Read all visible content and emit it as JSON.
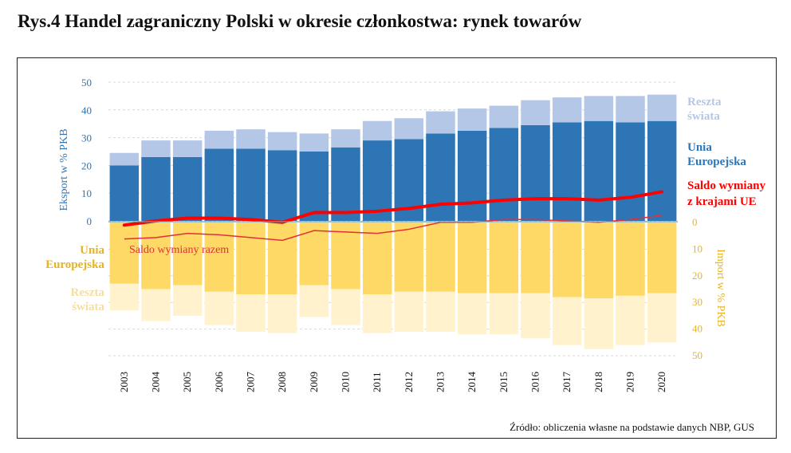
{
  "title": "Rys.4 Handel zagraniczny Polski w okresie członkostwa: rynek towarów",
  "source": "Źródło: obliczenia własne na podstawie danych NBP, GUS",
  "colors": {
    "eu_export": "#2e75b6",
    "row_export": "#b4c7e7",
    "eu_import": "#ffd966",
    "row_import": "#fff2cc",
    "saldo_eu": "#ff0000",
    "saldo_total": "#e0303a",
    "left_axis": "#2e75b6",
    "right_axis": "#e6b422"
  },
  "chart_data": {
    "type": "bar",
    "categories": [
      "2003",
      "2004",
      "2005",
      "2006",
      "2007",
      "2008",
      "2009",
      "2010",
      "2011",
      "2012",
      "2013",
      "2014",
      "2015",
      "2016",
      "2017",
      "2018",
      "2019",
      "2020"
    ],
    "series": [
      {
        "name": "Unia Europejska",
        "side": "export",
        "values": [
          20,
          23,
          23,
          26,
          26,
          25.5,
          25,
          26.5,
          29,
          29.5,
          31.5,
          32.5,
          33.5,
          34.5,
          35.5,
          36,
          35.5,
          36
        ]
      },
      {
        "name": "Reszta świata",
        "side": "export",
        "values": [
          4.5,
          6,
          6,
          6.5,
          7,
          6.5,
          6.5,
          6.5,
          7,
          7.5,
          8,
          8,
          8,
          9,
          9,
          9,
          9.5,
          9.5
        ]
      },
      {
        "name": "Unia Europejska",
        "side": "import",
        "values": [
          23,
          25,
          23.5,
          26,
          27,
          27,
          23.5,
          25,
          27,
          26,
          26,
          26.5,
          26.5,
          26.5,
          28,
          28.5,
          27.5,
          26.5
        ]
      },
      {
        "name": "Reszta świata",
        "side": "import",
        "values": [
          10,
          12,
          11.5,
          12.5,
          14,
          14.5,
          12,
          13.5,
          14.5,
          15,
          15,
          15.5,
          15.5,
          17,
          18,
          19,
          18.5,
          18.5
        ]
      },
      {
        "name": "Saldo wymiany z krajami UE",
        "type": "line",
        "values": [
          -1.5,
          0,
          1,
          1,
          0.5,
          -0.5,
          3,
          3,
          3.5,
          4.5,
          6,
          6.5,
          7.5,
          8,
          8,
          7.5,
          8.5,
          10.5
        ]
      },
      {
        "name": "Saldo wymiany razem",
        "type": "line",
        "values": [
          -6.5,
          -6,
          -4.5,
          -5,
          -6,
          -7,
          -3.5,
          -4,
          -4.5,
          -3,
          -0.5,
          -0.5,
          0.5,
          0.5,
          0,
          -0.5,
          0.5,
          2
        ]
      }
    ],
    "labels": {
      "ylabel_left": "Eksport w % PKB",
      "ylabel_right": "Import w % PKB",
      "row_export": "Reszta świata",
      "eu_export": "Unia Europejska",
      "saldo_eu": "Saldo wymiany z krajami UE",
      "eu_import": "Unia Europejska",
      "row_import": "Reszta świata",
      "saldo_total": "Saldo wymiany razem"
    },
    "left_ticks": [
      0,
      10,
      20,
      30,
      40,
      50
    ],
    "right_ticks": [
      0,
      10,
      20,
      30,
      40,
      50
    ],
    "ylim": [
      -50,
      50
    ],
    "grid": "dashed horizontal"
  }
}
